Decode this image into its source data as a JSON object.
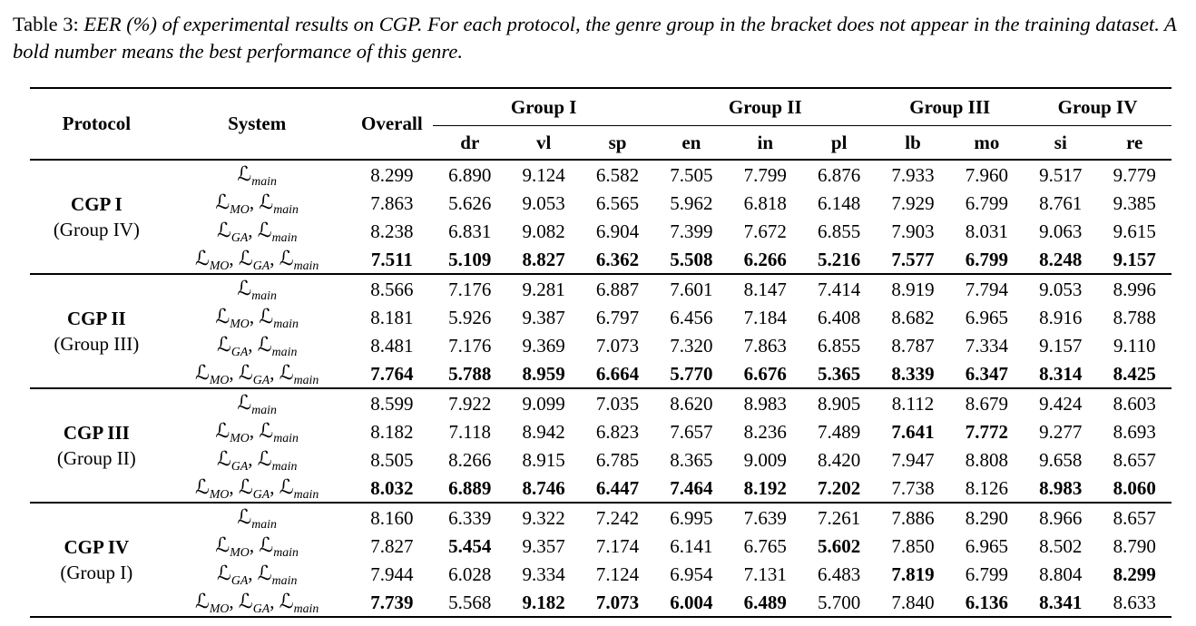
{
  "caption": {
    "label": "Table 3:",
    "text": "EER (%) of experimental results on CGP. For each protocol, the genre group in the bracket does not appear in the training dataset. A bold number means the best performance of this genre."
  },
  "table": {
    "script_letter": "ℒ",
    "header": {
      "protocol": "Protocol",
      "system": "System",
      "overall": "Overall",
      "groups": [
        {
          "label": "Group I",
          "cols": [
            "dr",
            "vl",
            "sp"
          ]
        },
        {
          "label": "Group II",
          "cols": [
            "en",
            "in",
            "pl"
          ]
        },
        {
          "label": "Group III",
          "cols": [
            "lb",
            "mo"
          ]
        },
        {
          "label": "Group IV",
          "cols": [
            "si",
            "re"
          ]
        }
      ]
    },
    "blocks": [
      {
        "protocol": "CGP I",
        "holdout": "(Group IV)",
        "rows": [
          {
            "system_subs": [
              "main"
            ],
            "values": [
              "8.299",
              "6.890",
              "9.124",
              "6.582",
              "7.505",
              "7.799",
              "6.876",
              "7.933",
              "7.960",
              "9.517",
              "9.779"
            ],
            "bold": [
              0,
              0,
              0,
              0,
              0,
              0,
              0,
              0,
              0,
              0,
              0
            ]
          },
          {
            "system_subs": [
              "MO",
              "main"
            ],
            "values": [
              "7.863",
              "5.626",
              "9.053",
              "6.565",
              "5.962",
              "6.818",
              "6.148",
              "7.929",
              "6.799",
              "8.761",
              "9.385"
            ],
            "bold": [
              0,
              0,
              0,
              0,
              0,
              0,
              0,
              0,
              0,
              0,
              0
            ]
          },
          {
            "system_subs": [
              "GA",
              "main"
            ],
            "values": [
              "8.238",
              "6.831",
              "9.082",
              "6.904",
              "7.399",
              "7.672",
              "6.855",
              "7.903",
              "8.031",
              "9.063",
              "9.615"
            ],
            "bold": [
              0,
              0,
              0,
              0,
              0,
              0,
              0,
              0,
              0,
              0,
              0
            ]
          },
          {
            "system_subs": [
              "MO",
              "GA",
              "main"
            ],
            "values": [
              "7.511",
              "5.109",
              "8.827",
              "6.362",
              "5.508",
              "6.266",
              "5.216",
              "7.577",
              "6.799",
              "8.248",
              "9.157"
            ],
            "bold": [
              1,
              1,
              1,
              1,
              1,
              1,
              1,
              1,
              1,
              1,
              1
            ]
          }
        ]
      },
      {
        "protocol": "CGP II",
        "holdout": "(Group III)",
        "rows": [
          {
            "system_subs": [
              "main"
            ],
            "values": [
              "8.566",
              "7.176",
              "9.281",
              "6.887",
              "7.601",
              "8.147",
              "7.414",
              "8.919",
              "7.794",
              "9.053",
              "8.996"
            ],
            "bold": [
              0,
              0,
              0,
              0,
              0,
              0,
              0,
              0,
              0,
              0,
              0
            ]
          },
          {
            "system_subs": [
              "MO",
              "main"
            ],
            "values": [
              "8.181",
              "5.926",
              "9.387",
              "6.797",
              "6.456",
              "7.184",
              "6.408",
              "8.682",
              "6.965",
              "8.916",
              "8.788"
            ],
            "bold": [
              0,
              0,
              0,
              0,
              0,
              0,
              0,
              0,
              0,
              0,
              0
            ]
          },
          {
            "system_subs": [
              "GA",
              "main"
            ],
            "values": [
              "8.481",
              "7.176",
              "9.369",
              "7.073",
              "7.320",
              "7.863",
              "6.855",
              "8.787",
              "7.334",
              "9.157",
              "9.110"
            ],
            "bold": [
              0,
              0,
              0,
              0,
              0,
              0,
              0,
              0,
              0,
              0,
              0
            ]
          },
          {
            "system_subs": [
              "MO",
              "GA",
              "main"
            ],
            "values": [
              "7.764",
              "5.788",
              "8.959",
              "6.664",
              "5.770",
              "6.676",
              "5.365",
              "8.339",
              "6.347",
              "8.314",
              "8.425"
            ],
            "bold": [
              1,
              1,
              1,
              1,
              1,
              1,
              1,
              1,
              1,
              1,
              1
            ]
          }
        ]
      },
      {
        "protocol": "CGP III",
        "holdout": "(Group II)",
        "rows": [
          {
            "system_subs": [
              "main"
            ],
            "values": [
              "8.599",
              "7.922",
              "9.099",
              "7.035",
              "8.620",
              "8.983",
              "8.905",
              "8.112",
              "8.679",
              "9.424",
              "8.603"
            ],
            "bold": [
              0,
              0,
              0,
              0,
              0,
              0,
              0,
              0,
              0,
              0,
              0
            ]
          },
          {
            "system_subs": [
              "MO",
              "main"
            ],
            "values": [
              "8.182",
              "7.118",
              "8.942",
              "6.823",
              "7.657",
              "8.236",
              "7.489",
              "7.641",
              "7.772",
              "9.277",
              "8.693"
            ],
            "bold": [
              0,
              0,
              0,
              0,
              0,
              0,
              0,
              1,
              1,
              0,
              0
            ]
          },
          {
            "system_subs": [
              "GA",
              "main"
            ],
            "values": [
              "8.505",
              "8.266",
              "8.915",
              "6.785",
              "8.365",
              "9.009",
              "8.420",
              "7.947",
              "8.808",
              "9.658",
              "8.657"
            ],
            "bold": [
              0,
              0,
              0,
              0,
              0,
              0,
              0,
              0,
              0,
              0,
              0
            ]
          },
          {
            "system_subs": [
              "MO",
              "GA",
              "main"
            ],
            "values": [
              "8.032",
              "6.889",
              "8.746",
              "6.447",
              "7.464",
              "8.192",
              "7.202",
              "7.738",
              "8.126",
              "8.983",
              "8.060"
            ],
            "bold": [
              1,
              1,
              1,
              1,
              1,
              1,
              1,
              0,
              0,
              1,
              1
            ]
          }
        ]
      },
      {
        "protocol": "CGP IV",
        "holdout": "(Group I)",
        "rows": [
          {
            "system_subs": [
              "main"
            ],
            "values": [
              "8.160",
              "6.339",
              "9.322",
              "7.242",
              "6.995",
              "7.639",
              "7.261",
              "7.886",
              "8.290",
              "8.966",
              "8.657"
            ],
            "bold": [
              0,
              0,
              0,
              0,
              0,
              0,
              0,
              0,
              0,
              0,
              0
            ]
          },
          {
            "system_subs": [
              "MO",
              "main"
            ],
            "values": [
              "7.827",
              "5.454",
              "9.357",
              "7.174",
              "6.141",
              "6.765",
              "5.602",
              "7.850",
              "6.965",
              "8.502",
              "8.790"
            ],
            "bold": [
              0,
              1,
              0,
              0,
              0,
              0,
              1,
              0,
              0,
              0,
              0
            ]
          },
          {
            "system_subs": [
              "GA",
              "main"
            ],
            "values": [
              "7.944",
              "6.028",
              "9.334",
              "7.124",
              "6.954",
              "7.131",
              "6.483",
              "7.819",
              "6.799",
              "8.804",
              "8.299"
            ],
            "bold": [
              0,
              0,
              0,
              0,
              0,
              0,
              0,
              1,
              0,
              0,
              1
            ]
          },
          {
            "system_subs": [
              "MO",
              "GA",
              "main"
            ],
            "values": [
              "7.739",
              "5.568",
              "9.182",
              "7.073",
              "6.004",
              "6.489",
              "5.700",
              "7.840",
              "6.136",
              "8.341",
              "8.633"
            ],
            "bold": [
              1,
              0,
              1,
              1,
              1,
              1,
              0,
              0,
              1,
              1,
              0
            ]
          }
        ]
      }
    ]
  }
}
